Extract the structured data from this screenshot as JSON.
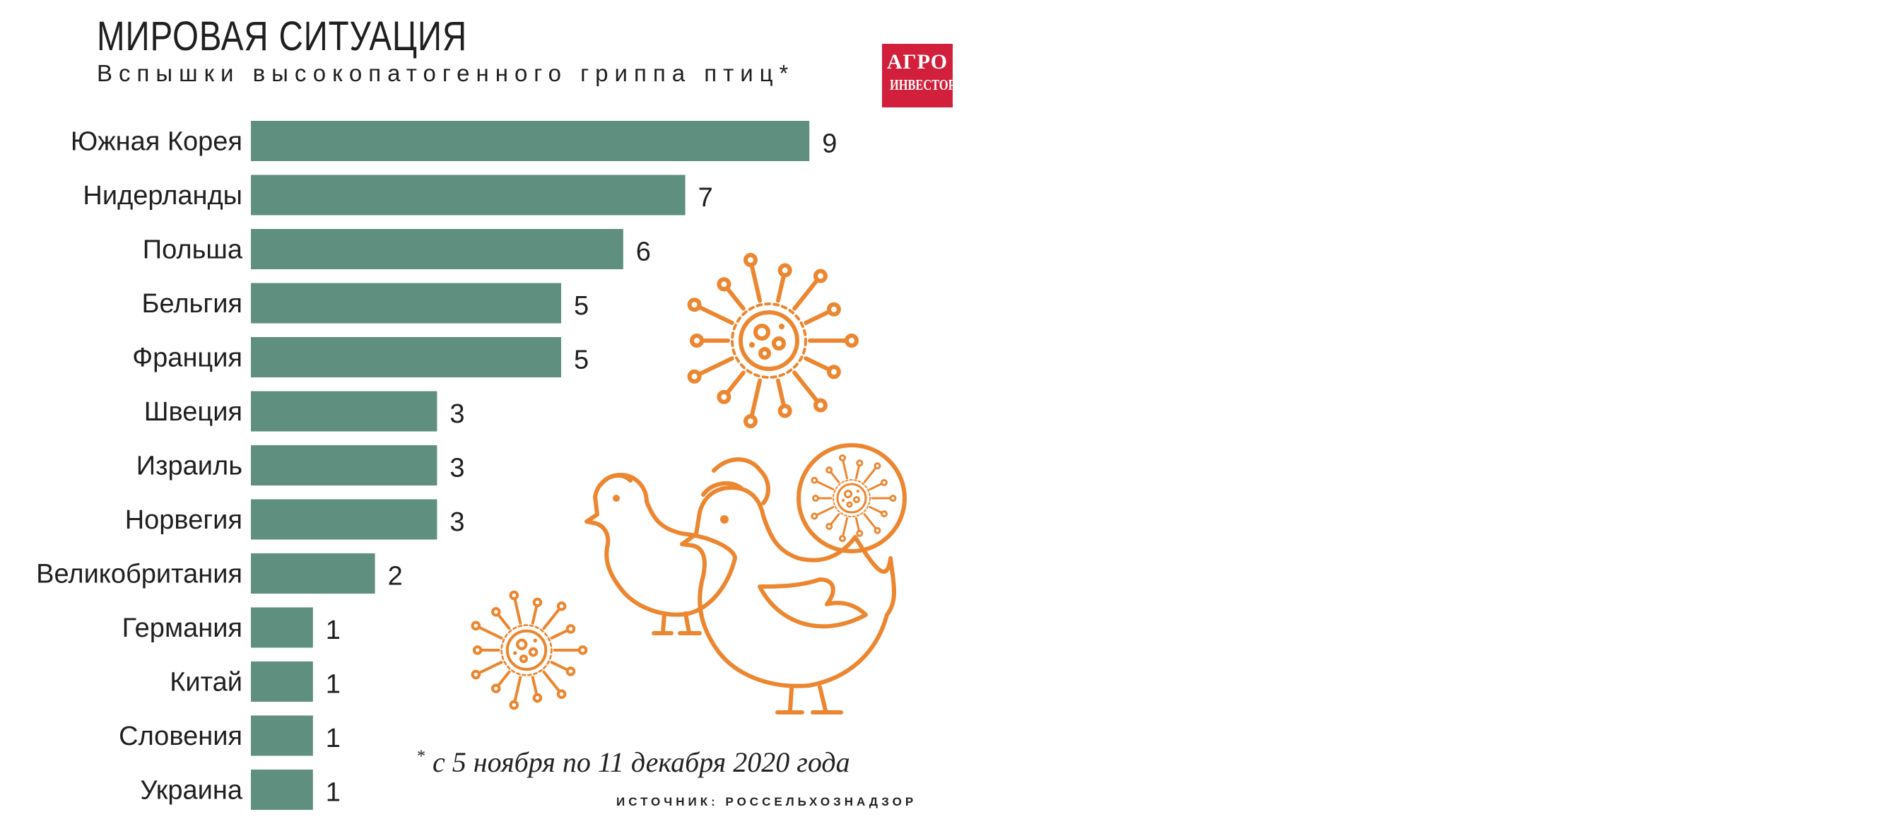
{
  "header": {
    "title": "МИРОВАЯ СИТУАЦИЯ",
    "subtitle": "Вспышки высокопатогенного гриппа птиц*"
  },
  "logo": {
    "line1": "АГРО",
    "line2": "ИНВЕСТОР"
  },
  "footnote": {
    "marker": "*",
    "text": "с 5 ноября по 11 декабря 2020 года"
  },
  "source": "ИСТОЧНИК: РОССЕЛЬХОЗНАДЗОР",
  "colors": {
    "bar": "#5f8f7e",
    "illustration": "#ec8630",
    "logo": "#d21f3c",
    "text": "#1f1f1f"
  },
  "chart_data": {
    "type": "bar",
    "orientation": "horizontal",
    "title": "МИРОВАЯ СИТУАЦИЯ",
    "subtitle": "Вспышки высокопатогенного гриппа птиц*",
    "categories": [
      "Южная Корея",
      "Нидерланды",
      "Польша",
      "Бельгия",
      "Франция",
      "Швеция",
      "Израиль",
      "Норвегия",
      "Великобритания",
      "Германия",
      "Китай",
      "Словения",
      "Украина"
    ],
    "values": [
      9,
      7,
      6,
      5,
      5,
      3,
      3,
      3,
      2,
      1,
      1,
      1,
      1
    ],
    "xlim": [
      0,
      9
    ],
    "grid": false,
    "data_labels": true
  }
}
